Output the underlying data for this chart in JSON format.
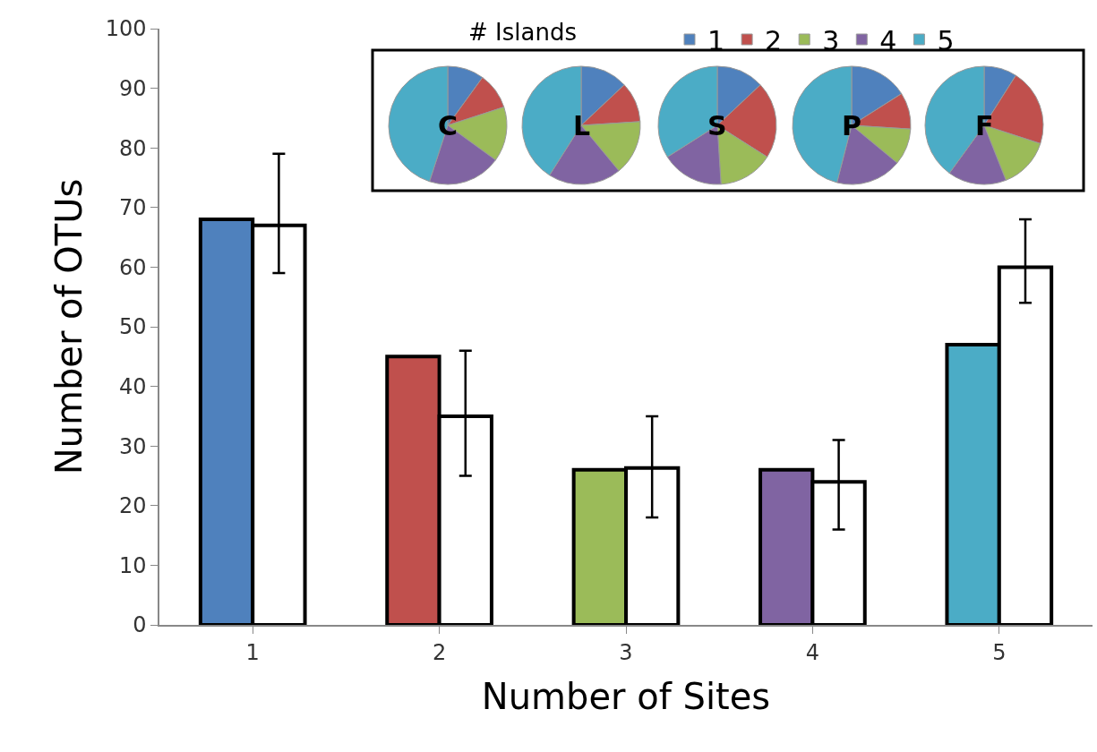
{
  "chart_data": [
    {
      "type": "bar",
      "xlabel": "Number of Sites",
      "ylabel": "Number of OTUs",
      "categories": [
        "1",
        "2",
        "3",
        "4",
        "5"
      ],
      "ylim": [
        0,
        100
      ],
      "yticks": [
        0,
        10,
        20,
        30,
        40,
        50,
        60,
        70,
        80,
        90,
        100
      ],
      "legend": false,
      "series": [
        {
          "colors": [
            "#4f81bd",
            "#c0504d",
            "#9bbb59",
            "#8064a2",
            "#4bacc6"
          ],
          "values": [
            68,
            45,
            26,
            26,
            47
          ]
        },
        {
          "color": "#ffffff",
          "values": [
            67,
            35,
            26.3,
            24,
            60
          ],
          "errors": [
            [
              59,
              79
            ],
            [
              25,
              46
            ],
            [
              18,
              35
            ],
            [
              16,
              31
            ],
            [
              54,
              68
            ]
          ]
        }
      ]
    },
    {
      "type": "pie",
      "title": "C",
      "legend_title": "# Islands",
      "legend": "top",
      "categories": [
        "1",
        "2",
        "3",
        "4",
        "5"
      ],
      "colors": [
        "#4f81bd",
        "#c0504d",
        "#9bbb59",
        "#8064a2",
        "#4bacc6"
      ],
      "values": [
        10,
        10,
        15,
        20,
        45
      ]
    },
    {
      "type": "pie",
      "title": "L",
      "colors": [
        "#4f81bd",
        "#c0504d",
        "#9bbb59",
        "#8064a2",
        "#4bacc6"
      ],
      "values": [
        13,
        11,
        15,
        20,
        41
      ]
    },
    {
      "type": "pie",
      "title": "S",
      "colors": [
        "#4f81bd",
        "#c0504d",
        "#9bbb59",
        "#8064a2",
        "#4bacc6"
      ],
      "values": [
        13,
        21,
        15,
        17,
        34
      ]
    },
    {
      "type": "pie",
      "title": "P",
      "colors": [
        "#4f81bd",
        "#c0504d",
        "#9bbb59",
        "#8064a2",
        "#4bacc6"
      ],
      "values": [
        16,
        10,
        10,
        18,
        46
      ]
    },
    {
      "type": "pie",
      "title": "F",
      "colors": [
        "#4f81bd",
        "#c0504d",
        "#9bbb59",
        "#8064a2",
        "#4bacc6"
      ],
      "values": [
        9,
        21,
        14,
        16,
        40
      ]
    }
  ]
}
